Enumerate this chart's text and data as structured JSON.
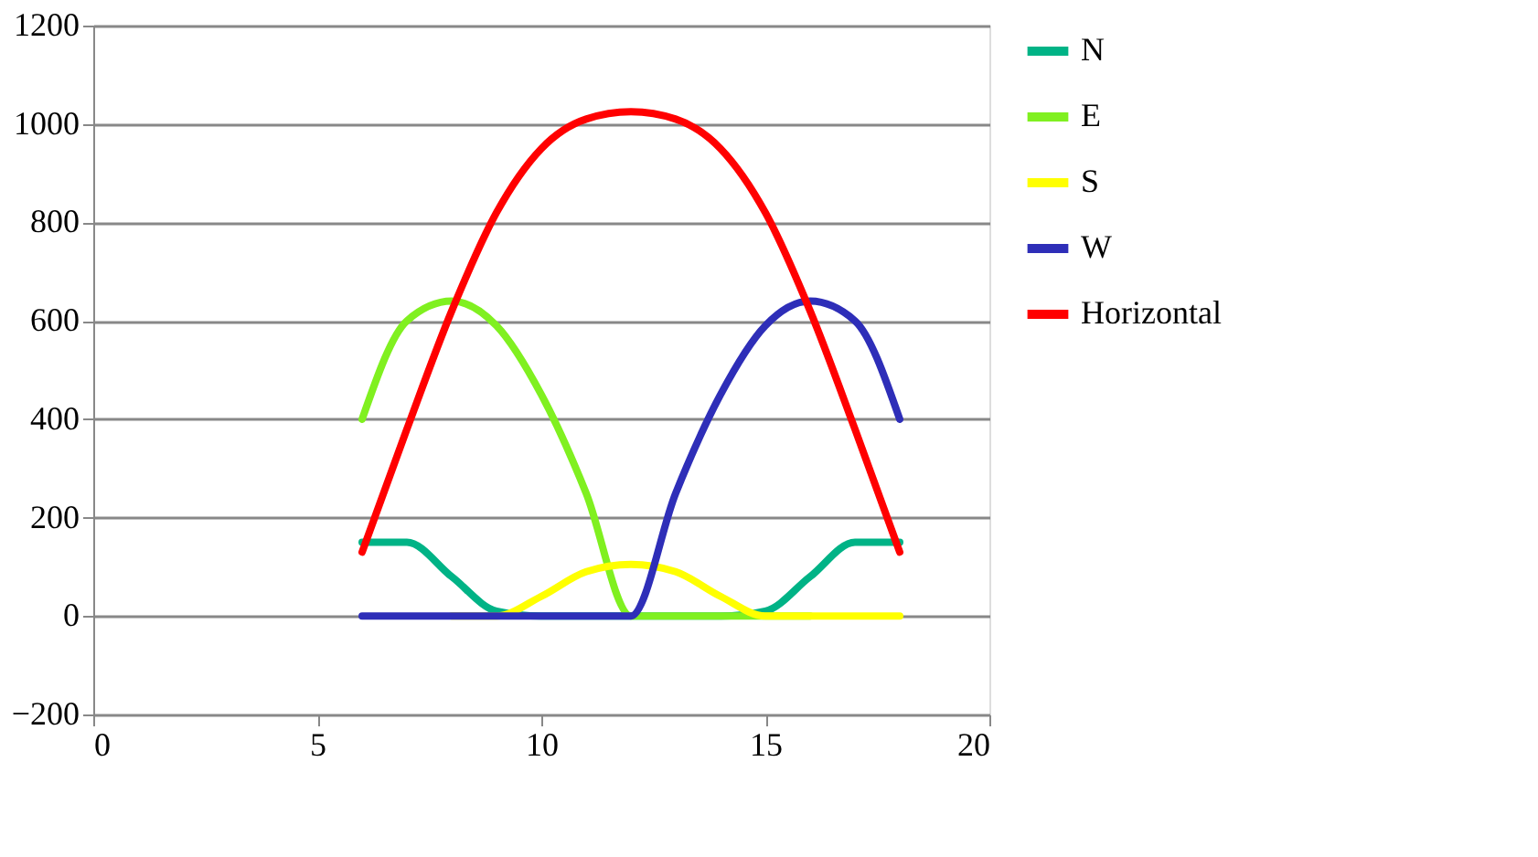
{
  "chart_data": {
    "type": "line",
    "x": [
      6,
      7,
      8,
      9,
      10,
      11,
      12,
      13,
      14,
      15,
      16,
      17,
      18
    ],
    "series": [
      {
        "name": "N",
        "color": "#00b386",
        "values": [
          150,
          150,
          80,
          10,
          0,
          0,
          0,
          0,
          0,
          10,
          80,
          150,
          150
        ]
      },
      {
        "name": "E",
        "color": "#80f020",
        "values": [
          400,
          600,
          640,
          590,
          450,
          250,
          0,
          0,
          0,
          0,
          0,
          null,
          null
        ]
      },
      {
        "name": "S",
        "color": "#ffff00",
        "values": [
          null,
          null,
          0,
          0,
          40,
          90,
          105,
          90,
          40,
          0,
          0,
          0,
          0
        ]
      },
      {
        "name": "W",
        "color": "#2e2eb8",
        "values": [
          0,
          0,
          0,
          0,
          0,
          0,
          0,
          250,
          450,
          590,
          640,
          600,
          400
        ]
      },
      {
        "name": "Horizontal",
        "color": "#ff0000",
        "values": [
          130,
          380,
          620,
          820,
          950,
          1010,
          1025,
          1010,
          950,
          820,
          620,
          380,
          130
        ]
      }
    ],
    "xlim": [
      0,
      20
    ],
    "xticks": [
      0,
      5,
      10,
      15,
      20
    ],
    "ylim": [
      -200,
      1200
    ],
    "yticks": [
      -200,
      0,
      200,
      400,
      600,
      800,
      1000,
      1200
    ],
    "grid": "y",
    "legend": "right",
    "marker": "none",
    "line_style": "solid"
  }
}
